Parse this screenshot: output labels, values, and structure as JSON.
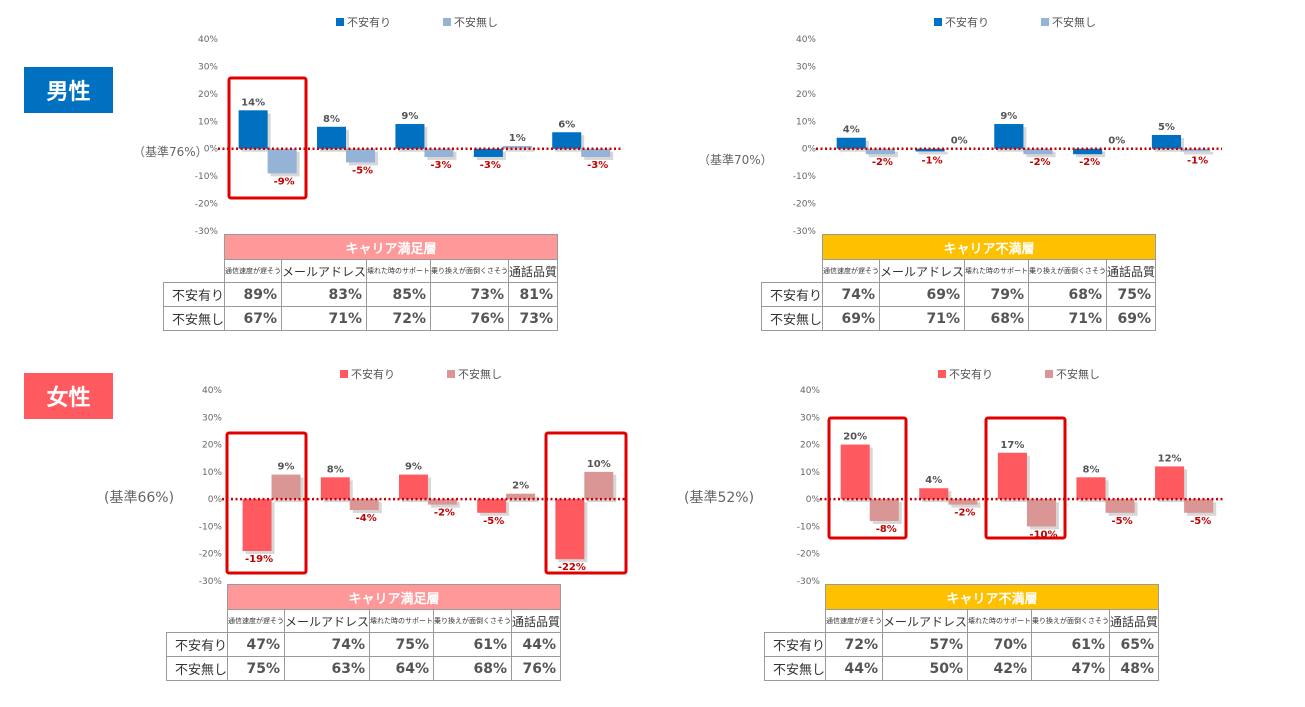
{
  "sections": [
    {
      "label": "男性",
      "color": "#0070c0"
    },
    {
      "label": "女性",
      "color": "#ff5a5f"
    }
  ],
  "colors": {
    "male_a": "#0070c0",
    "male_b": "#95b3d7",
    "female_a": "#ff5a5f",
    "female_b": "#d99694",
    "satisfied_header": "#ff9999",
    "unsatisfied_header": "#ffc000",
    "highlight": "#e00000",
    "negative_label": "#c00000",
    "baseline": "#cc0000"
  },
  "row_labels": [
    "不安有り",
    "不安無し"
  ],
  "columns": [
    "通信速度が遅そう",
    "メールアドレス",
    "壊れた時のサポート",
    "乗り換えが面倒くさそう",
    "通話品質"
  ],
  "chart_data": [
    {
      "type": "bar",
      "panel": "male-satisfied",
      "base_label": "（基準76%）",
      "categories": [
        "通信速度が遅そう",
        "メールアドレス",
        "壊れた時のサポート",
        "乗り換えが面倒くさそう",
        "通話品質"
      ],
      "series": [
        {
          "name": "不安有り",
          "values": [
            14,
            8,
            9,
            -3,
            6
          ],
          "labels": [
            "14%",
            "8%",
            "9%",
            "-3%",
            "6%"
          ]
        },
        {
          "name": "不安無し",
          "values": [
            -9,
            -5,
            -3,
            1,
            -3
          ],
          "labels": [
            "-9%",
            "-5%",
            "-3%",
            "1%",
            "-3%"
          ]
        }
      ],
      "ylim": [
        -30,
        40
      ],
      "y_ticks": [
        "40%",
        "30%",
        "20%",
        "10%",
        "0%",
        "-10%",
        "-20%",
        "-30%"
      ],
      "legend": "top",
      "table_title": "キャリア満足層",
      "rows": [
        [
          "89%",
          "83%",
          "85%",
          "73%",
          "81%"
        ],
        [
          "67%",
          "71%",
          "72%",
          "76%",
          "73%"
        ]
      ]
    },
    {
      "type": "bar",
      "panel": "male-unsatisfied",
      "base_label": "（基準70%）",
      "categories": [
        "通信速度が遅そう",
        "メールアドレス",
        "壊れた時のサポート",
        "乗り換えが面倒くさそう",
        "通話品質"
      ],
      "series": [
        {
          "name": "不安有り",
          "values": [
            4,
            -1,
            9,
            -2,
            5
          ],
          "labels": [
            "4%",
            "-1%",
            "9%",
            "-2%",
            "5%"
          ]
        },
        {
          "name": "不安無し",
          "values": [
            -2,
            0,
            -2,
            0,
            -1
          ],
          "labels": [
            "-2%",
            "0%",
            "-2%",
            "0%",
            "-1%"
          ]
        }
      ],
      "ylim": [
        -30,
        40
      ],
      "y_ticks": [
        "40%",
        "30%",
        "20%",
        "10%",
        "0%",
        "-10%",
        "-20%",
        "-30%"
      ],
      "legend": "top",
      "table_title": "キャリア不満層",
      "rows": [
        [
          "74%",
          "69%",
          "79%",
          "68%",
          "75%"
        ],
        [
          "69%",
          "71%",
          "68%",
          "71%",
          "69%"
        ]
      ]
    },
    {
      "type": "bar",
      "panel": "female-satisfied",
      "base_label": "(基準66%)",
      "categories": [
        "通信速度が遅そう",
        "メールアドレス",
        "壊れた時のサポート",
        "乗り換えが面倒くさそう",
        "通話品質"
      ],
      "series": [
        {
          "name": "不安有り",
          "values": [
            -19,
            8,
            9,
            -5,
            -22
          ],
          "labels": [
            "-19%",
            "8%",
            "9%",
            "-5%",
            "-22%"
          ]
        },
        {
          "name": "不安無し",
          "values": [
            9,
            -4,
            -2,
            2,
            10
          ],
          "labels": [
            "9%",
            "-4%",
            "-2%",
            "2%",
            "10%"
          ]
        }
      ],
      "ylim": [
        -30,
        40
      ],
      "y_ticks": [
        "40%",
        "30%",
        "20%",
        "10%",
        "0%",
        "-10%",
        "-20%",
        "-30%"
      ],
      "legend": "top",
      "table_title": "キャリア満足層",
      "rows": [
        [
          "47%",
          "74%",
          "75%",
          "61%",
          "44%"
        ],
        [
          "75%",
          "63%",
          "64%",
          "68%",
          "76%"
        ]
      ]
    },
    {
      "type": "bar",
      "panel": "female-unsatisfied",
      "base_label": "(基準52%)",
      "categories": [
        "通信速度が遅そう",
        "メールアドレス",
        "壊れた時のサポート",
        "乗り換えが面倒くさそう",
        "通話品質"
      ],
      "series": [
        {
          "name": "不安有り",
          "values": [
            20,
            4,
            17,
            8,
            12
          ],
          "labels": [
            "20%",
            "4%",
            "17%",
            "8%",
            "12%"
          ]
        },
        {
          "name": "不安無し",
          "values": [
            -8,
            -2,
            -10,
            -5,
            -5
          ],
          "labels": [
            "-8%",
            "-2%",
            "-10%",
            "-5%",
            "-5%"
          ]
        }
      ],
      "ylim": [
        -30,
        40
      ],
      "y_ticks": [
        "40%",
        "30%",
        "20%",
        "10%",
        "0%",
        "-10%",
        "-20%",
        "-30%"
      ],
      "legend": "top",
      "table_title": "キャリア不満層",
      "rows": [
        [
          "72%",
          "57%",
          "70%",
          "61%",
          "65%"
        ],
        [
          "44%",
          "50%",
          "42%",
          "47%",
          "48%"
        ]
      ]
    }
  ]
}
